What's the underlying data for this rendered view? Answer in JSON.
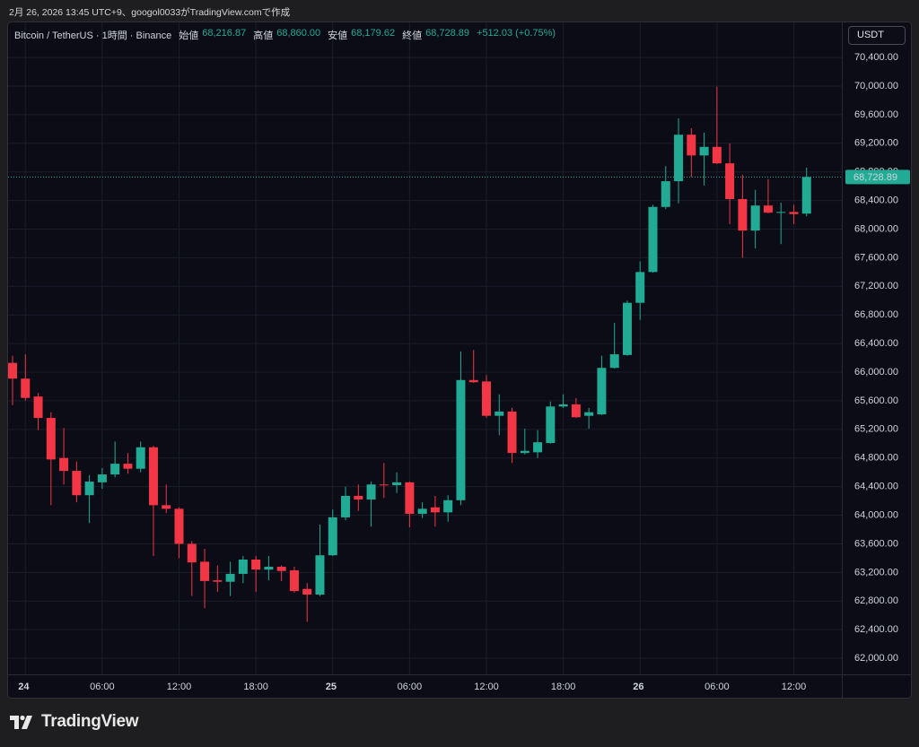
{
  "header": {
    "caption": "2月 26, 2026 13:45 UTC+9、googol0033がTradingView.comで作成"
  },
  "chart_data": {
    "type": "candlestick",
    "symbol": "Bitcoin / TetherUS · 1時間 · Binance",
    "legend": [
      {
        "label": "始値",
        "value": "68,216.87"
      },
      {
        "label": "高値",
        "value": "68,860.00"
      },
      {
        "label": "安値",
        "value": "68,179.62"
      },
      {
        "label": "終値",
        "value": "68,728.89"
      }
    ],
    "change": "+512.03 (+0.75%)",
    "currency": "USDT",
    "up_color": "#22ab94",
    "down_color": "#f23645",
    "grid": true,
    "categories": [
      null,
      "24",
      null,
      null,
      null,
      null,
      null,
      "06:00",
      null,
      null,
      null,
      null,
      null,
      "12:00",
      null,
      null,
      null,
      null,
      null,
      "18:00",
      null,
      null,
      null,
      null,
      null,
      "25",
      null,
      null,
      null,
      null,
      null,
      "06:00",
      null,
      null,
      null,
      null,
      null,
      "12:00",
      null,
      null,
      null,
      null,
      null,
      "18:00",
      null,
      null,
      null,
      null,
      null,
      "26",
      null,
      null,
      null,
      null,
      null,
      "06:00",
      null,
      null,
      null,
      null,
      null,
      "12:00",
      null
    ],
    "open": [
      66130,
      65910,
      65660,
      65360,
      64800,
      64620,
      64280,
      64460,
      64570,
      64720,
      64650,
      64950,
      64140,
      64090,
      63600,
      63350,
      63090,
      63070,
      63180,
      63380,
      63240,
      63280,
      63230,
      62970,
      62890,
      63440,
      63970,
      64270,
      64220,
      64430,
      64420,
      64460,
      64020,
      64110,
      64040,
      64210,
      65890,
      65870,
      65390,
      65450,
      64870,
      64880,
      65010,
      65520,
      65550,
      65390,
      65410,
      66060,
      66240,
      66970,
      67400,
      68310,
      68670,
      69320,
      69030,
      69150,
      68920,
      68420,
      67980,
      68330,
      68230,
      68240,
      68216.87
    ],
    "high": [
      66230,
      66250,
      65710,
      65440,
      65220,
      64750,
      64560,
      64660,
      65030,
      64870,
      65030,
      64970,
      64430,
      64110,
      63640,
      63530,
      63300,
      63350,
      63430,
      63430,
      63430,
      63300,
      63280,
      63050,
      63870,
      64080,
      64400,
      64430,
      64470,
      64730,
      64600,
      64470,
      64180,
      64270,
      64280,
      66290,
      66310,
      65960,
      65690,
      65500,
      65210,
      65190,
      65590,
      65690,
      65640,
      65500,
      66230,
      66690,
      67000,
      67550,
      68340,
      68880,
      69550,
      69410,
      69350,
      69990,
      69200,
      68760,
      68550,
      68700,
      68370,
      68340,
      68860
    ],
    "low": [
      65540,
      65600,
      65190,
      64140,
      64430,
      64180,
      63890,
      64370,
      64530,
      64580,
      64600,
      63430,
      64030,
      63400,
      62870,
      62700,
      62930,
      62870,
      63050,
      62930,
      63090,
      63080,
      62920,
      62510,
      62870,
      63430,
      63930,
      64060,
      63840,
      64240,
      64310,
      63830,
      63960,
      63840,
      63910,
      64140,
      65850,
      65360,
      65120,
      64730,
      64850,
      64800,
      65000,
      65500,
      65360,
      65210,
      65400,
      66050,
      66230,
      66730,
      67390,
      68280,
      68360,
      68730,
      68610,
      68910,
      68070,
      67600,
      67730,
      68220,
      67790,
      68070,
      68179.62
    ],
    "close": [
      65910,
      65640,
      65360,
      64780,
      64620,
      64280,
      64470,
      64570,
      64720,
      64650,
      64950,
      64140,
      64090,
      63600,
      63340,
      63080,
      63070,
      63180,
      63380,
      63240,
      63280,
      63220,
      62940,
      62890,
      63440,
      63970,
      64270,
      64220,
      64430,
      64420,
      64460,
      64020,
      64090,
      64040,
      64210,
      65890,
      65860,
      65390,
      65450,
      64870,
      64900,
      65020,
      65520,
      65550,
      65370,
      65440,
      66060,
      66250,
      66970,
      67400,
      68310,
      68670,
      69320,
      69030,
      69150,
      68920,
      68420,
      67980,
      68330,
      68230,
      68240,
      68210,
      68728.89
    ],
    "ylim": [
      61775,
      70890
    ],
    "yticks": [
      {
        "value": 62000,
        "label": "62,000.00"
      },
      {
        "value": 62400,
        "label": "62,400.00"
      },
      {
        "value": 62800,
        "label": "62,800.00"
      },
      {
        "value": 63200,
        "label": "63,200.00"
      },
      {
        "value": 63600,
        "label": "63,600.00"
      },
      {
        "value": 64000,
        "label": "64,000.00"
      },
      {
        "value": 64400,
        "label": "64,400.00"
      },
      {
        "value": 64800,
        "label": "64,800.00"
      },
      {
        "value": 65200,
        "label": "65,200.00"
      },
      {
        "value": 65600,
        "label": "65,600.00"
      },
      {
        "value": 66000,
        "label": "66,000.00"
      },
      {
        "value": 66400,
        "label": "66,400.00"
      },
      {
        "value": 66800,
        "label": "66,800.00"
      },
      {
        "value": 67200,
        "label": "67,200.00"
      },
      {
        "value": 67600,
        "label": "67,600.00"
      },
      {
        "value": 68000,
        "label": "68,000.00"
      },
      {
        "value": 68400,
        "label": "68,400.00"
      },
      {
        "value": 68800,
        "label": "68,800.00"
      },
      {
        "value": 69200,
        "label": "69,200.00"
      },
      {
        "value": 69600,
        "label": "69,600.00"
      },
      {
        "value": 70000,
        "label": "70,000.00"
      },
      {
        "value": 70400,
        "label": "70,400.00"
      }
    ],
    "last_price": {
      "value": 68728.89,
      "label": "68,728.89"
    }
  },
  "footer": {
    "logo": "TradingView"
  }
}
